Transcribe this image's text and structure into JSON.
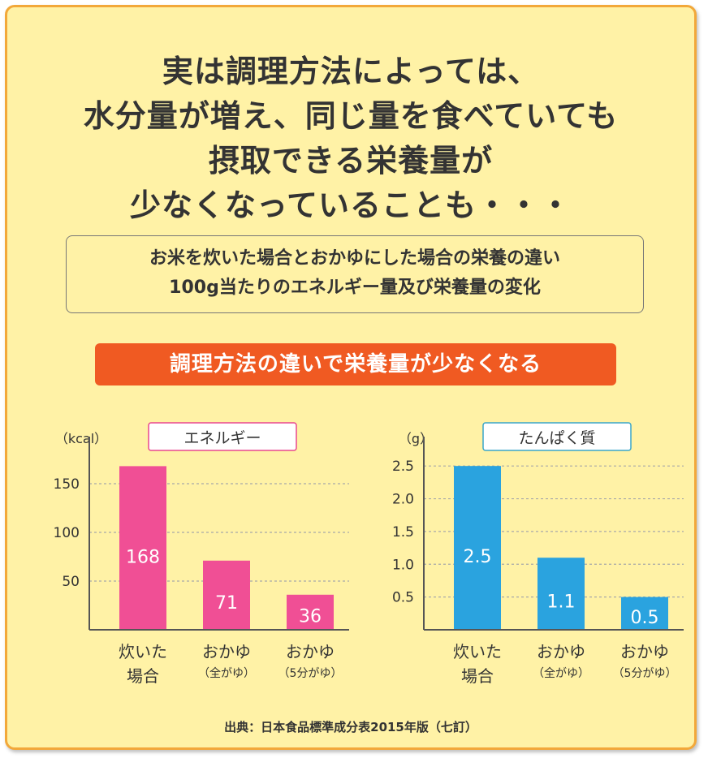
{
  "headline": [
    "実は調理方法によっては、",
    "水分量が増え、同じ量を食べていても",
    "摂取できる栄養量が",
    "少なくなっていることも・・・"
  ],
  "info": [
    "お米を炊いた場合とおかゆにした場合の栄養の違い",
    "100g当たりのエネルギー量及び栄養量の変化"
  ],
  "banner": "調理方法の違いで栄養量が少なくなる",
  "source": "出典：日本食品標準成分表2015年版（七訂）",
  "chart_data": [
    {
      "type": "bar",
      "title": "エネルギー",
      "ylabel": "（kcal）",
      "categories": [
        {
          "line1": "炊いた",
          "line2": "場合"
        },
        {
          "line1": "おかゆ",
          "line2": "（全がゆ）"
        },
        {
          "line1": "おかゆ",
          "line2": "（5分がゆ）"
        }
      ],
      "values": [
        168,
        71,
        36
      ],
      "value_labels": [
        "168",
        "71",
        "36"
      ],
      "ylim": [
        0,
        185
      ],
      "yticks": [
        50,
        100,
        150
      ],
      "ytick_labels": [
        "50",
        "100",
        "150"
      ],
      "grid": true,
      "bar_color": "#f04f95",
      "title_border_color": "#e8478f"
    },
    {
      "type": "bar",
      "title": "たんぱく質",
      "ylabel": "（g）",
      "categories": [
        {
          "line1": "炊いた",
          "line2": "場合"
        },
        {
          "line1": "おかゆ",
          "line2": "（全がゆ）"
        },
        {
          "line1": "おかゆ",
          "line2": "（5分がゆ）"
        }
      ],
      "values": [
        2.5,
        1.1,
        0.5
      ],
      "value_labels": [
        "2.5",
        "1.1",
        "0.5"
      ],
      "ylim": [
        0,
        2.75
      ],
      "yticks": [
        0.5,
        1.0,
        1.5,
        2.0,
        2.5
      ],
      "ytick_labels": [
        "0.5",
        "1.0",
        "1.5",
        "2.0",
        "2.5"
      ],
      "grid": true,
      "bar_color": "#2aa3df",
      "title_border_color": "#3aa6c8"
    }
  ]
}
